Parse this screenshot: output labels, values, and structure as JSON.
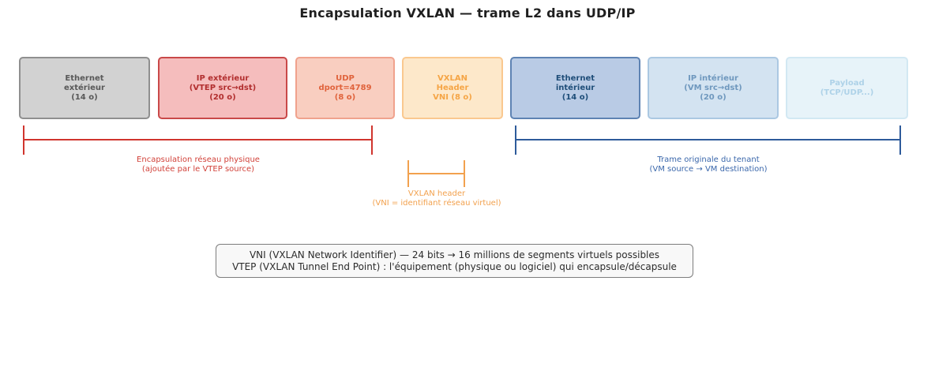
{
  "title": "Encapsulation VXLAN — trame L2 dans UDP/IP",
  "boxes": [
    {
      "id": "ethernet-exterieur",
      "lines": [
        "Ethernet",
        "extérieur",
        "(14 o)"
      ],
      "fill": "#d2d2d2",
      "border": "#8f8f8f",
      "text": "#595959"
    },
    {
      "id": "ip-exterieur",
      "lines": [
        "IP extérieur",
        "(VTEP src→dst)",
        "(20 o)"
      ],
      "fill": "#f5bdbd",
      "border": "#c94949",
      "text": "#b22f2f"
    },
    {
      "id": "udp",
      "lines": [
        "UDP",
        "dport=4789",
        "(8 o)"
      ],
      "fill": "#f9cec0",
      "border": "#f0a28d",
      "text": "#e0633c"
    },
    {
      "id": "vxlan-header",
      "lines": [
        "VXLAN",
        "Header",
        "VNI (8 o)"
      ],
      "fill": "#fde8ca",
      "border": "#fac88f",
      "text": "#f5a546"
    },
    {
      "id": "ethernet-interieur",
      "lines": [
        "Ethernet",
        "intérieur",
        "(14 o)"
      ],
      "fill": "#b9cbe5",
      "border": "#5e83b3",
      "text": "#1f4e79"
    },
    {
      "id": "ip-interieur",
      "lines": [
        "IP intérieur",
        "(VM src→dst)",
        "(20 o)"
      ],
      "fill": "#d3e3f1",
      "border": "#abc8e2",
      "text": "#6f98be"
    },
    {
      "id": "payload",
      "lines": [
        "Payload",
        "(TCP/UDP...)"
      ],
      "fill": "#e7f3f9",
      "border": "#d2e8f3",
      "text": "#aed2e8"
    }
  ],
  "brackets": [
    {
      "id": "physical-encapsulation",
      "color": "#d0352e",
      "text_color": "#d2423a",
      "label_lines": [
        "Encapsulation réseau physique",
        "(ajoutée par le VTEP source)"
      ]
    },
    {
      "id": "vxlan-header",
      "color": "#f2a14e",
      "text_color": "#f2a14e",
      "label_lines": [
        "VXLAN header",
        "(VNI = identifiant réseau virtuel)"
      ]
    },
    {
      "id": "tenant-frame",
      "color": "#2e5b9b",
      "text_color": "#3a67ab",
      "label_lines": [
        "Trame originale du tenant",
        "(VM source → VM destination)"
      ]
    }
  ],
  "note": {
    "lines": [
      "VNI (VXLAN Network Identifier) — 24 bits → 16 millions de segments virtuels possibles",
      "VTEP (VXLAN Tunnel End Point) : l'équipement (physique ou logiciel) qui encapsule/décapsule"
    ]
  }
}
